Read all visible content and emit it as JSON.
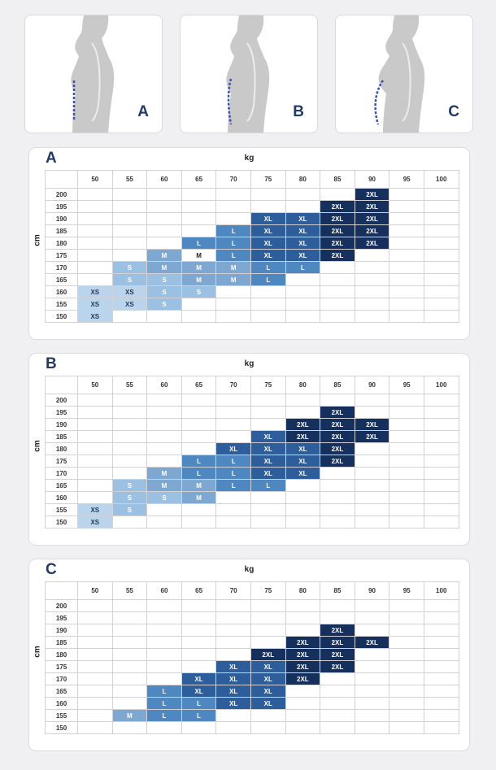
{
  "figures": [
    {
      "letter": "A",
      "curve": "straight"
    },
    {
      "letter": "B",
      "curve": "slight"
    },
    {
      "letter": "C",
      "curve": "strong"
    }
  ],
  "x_axis_label": "kg",
  "y_axis_label": "cm",
  "weights": [
    "50",
    "55",
    "60",
    "65",
    "70",
    "75",
    "80",
    "85",
    "90",
    "95",
    "100"
  ],
  "heights": [
    "200",
    "195",
    "190",
    "185",
    "180",
    "175",
    "170",
    "165",
    "160",
    "155",
    "150"
  ],
  "colors": {
    "XS": "#bad4ec",
    "S": "#9cc0e2",
    "M": "#7ea8d2",
    "L": "#4f87c1",
    "XL": "#2d5e9b",
    "2XL": "#16305e"
  },
  "sections": [
    {
      "letter": "A",
      "rows": [
        [
          "",
          "",
          "",
          "",
          "",
          "",
          "",
          "",
          "2XL",
          "",
          ""
        ],
        [
          "",
          "",
          "",
          "",
          "",
          "",
          "",
          "2XL",
          "2XL",
          "",
          ""
        ],
        [
          "",
          "",
          "",
          "",
          "",
          "XL",
          "XL",
          "2XL",
          "2XL",
          "",
          ""
        ],
        [
          "",
          "",
          "",
          "",
          "L",
          "XL",
          "XL",
          "2XL",
          "2XL",
          "",
          ""
        ],
        [
          "",
          "",
          "",
          "L",
          "L",
          "XL",
          "XL",
          "2XL",
          "2XL",
          "",
          ""
        ],
        [
          "",
          "",
          "M",
          "M",
          "L",
          "XL",
          "XL",
          "2XL",
          "",
          "",
          ""
        ],
        [
          "",
          "S",
          "M",
          "M",
          "M",
          "L",
          "L",
          "",
          "",
          "",
          ""
        ],
        [
          "",
          "S",
          "S",
          "M",
          "M",
          "L",
          "",
          "",
          "",
          "",
          ""
        ],
        [
          "XS",
          "XS",
          "S",
          "S",
          "",
          "",
          "",
          "",
          "",
          "",
          ""
        ],
        [
          "XS",
          "XS",
          "S",
          "",
          "",
          "",
          "",
          "",
          "",
          "",
          ""
        ],
        [
          "XS",
          "",
          "",
          "",
          "",
          "",
          "",
          "",
          "",
          "",
          ""
        ]
      ]
    },
    {
      "letter": "B",
      "rows": [
        [
          "",
          "",
          "",
          "",
          "",
          "",
          "",
          "",
          "",
          "",
          ""
        ],
        [
          "",
          "",
          "",
          "",
          "",
          "",
          "",
          "2XL",
          "",
          "",
          ""
        ],
        [
          "",
          "",
          "",
          "",
          "",
          "",
          "2XL",
          "2XL",
          "2XL",
          "",
          ""
        ],
        [
          "",
          "",
          "",
          "",
          "",
          "XL",
          "2XL",
          "2XL",
          "2XL",
          "",
          ""
        ],
        [
          "",
          "",
          "",
          "",
          "XL",
          "XL",
          "XL",
          "2XL",
          "",
          "",
          ""
        ],
        [
          "",
          "",
          "",
          "L",
          "L",
          "XL",
          "XL",
          "2XL",
          "",
          "",
          ""
        ],
        [
          "",
          "",
          "M",
          "L",
          "L",
          "XL",
          "XL",
          "",
          "",
          "",
          ""
        ],
        [
          "",
          "S",
          "M",
          "M",
          "L",
          "L",
          "",
          "",
          "",
          "",
          ""
        ],
        [
          "",
          "S",
          "S",
          "M",
          "",
          "",
          "",
          "",
          "",
          "",
          ""
        ],
        [
          "XS",
          "S",
          "",
          "",
          "",
          "",
          "",
          "",
          "",
          "",
          ""
        ],
        [
          "XS",
          "",
          "",
          "",
          "",
          "",
          "",
          "",
          "",
          "",
          ""
        ]
      ]
    },
    {
      "letter": "C",
      "rows": [
        [
          "",
          "",
          "",
          "",
          "",
          "",
          "",
          "",
          "",
          "",
          ""
        ],
        [
          "",
          "",
          "",
          "",
          "",
          "",
          "",
          "",
          "",
          "",
          ""
        ],
        [
          "",
          "",
          "",
          "",
          "",
          "",
          "",
          "2XL",
          "",
          "",
          ""
        ],
        [
          "",
          "",
          "",
          "",
          "",
          "",
          "2XL",
          "2XL",
          "2XL",
          "",
          ""
        ],
        [
          "",
          "",
          "",
          "",
          "",
          "2XL",
          "2XL",
          "2XL",
          "",
          "",
          ""
        ],
        [
          "",
          "",
          "",
          "",
          "XL",
          "XL",
          "2XL",
          "2XL",
          "",
          "",
          ""
        ],
        [
          "",
          "",
          "",
          "XL",
          "XL",
          "XL",
          "2XL",
          "",
          "",
          "",
          ""
        ],
        [
          "",
          "",
          "L",
          "XL",
          "XL",
          "XL",
          "",
          "",
          "",
          "",
          ""
        ],
        [
          "",
          "",
          "L",
          "L",
          "XL",
          "XL",
          "",
          "",
          "",
          "",
          ""
        ],
        [
          "",
          "M",
          "L",
          "L",
          "",
          "",
          "",
          "",
          "",
          "",
          ""
        ],
        [
          "",
          "",
          "",
          "",
          "",
          "",
          "",
          "",
          "",
          "",
          ""
        ]
      ]
    }
  ]
}
